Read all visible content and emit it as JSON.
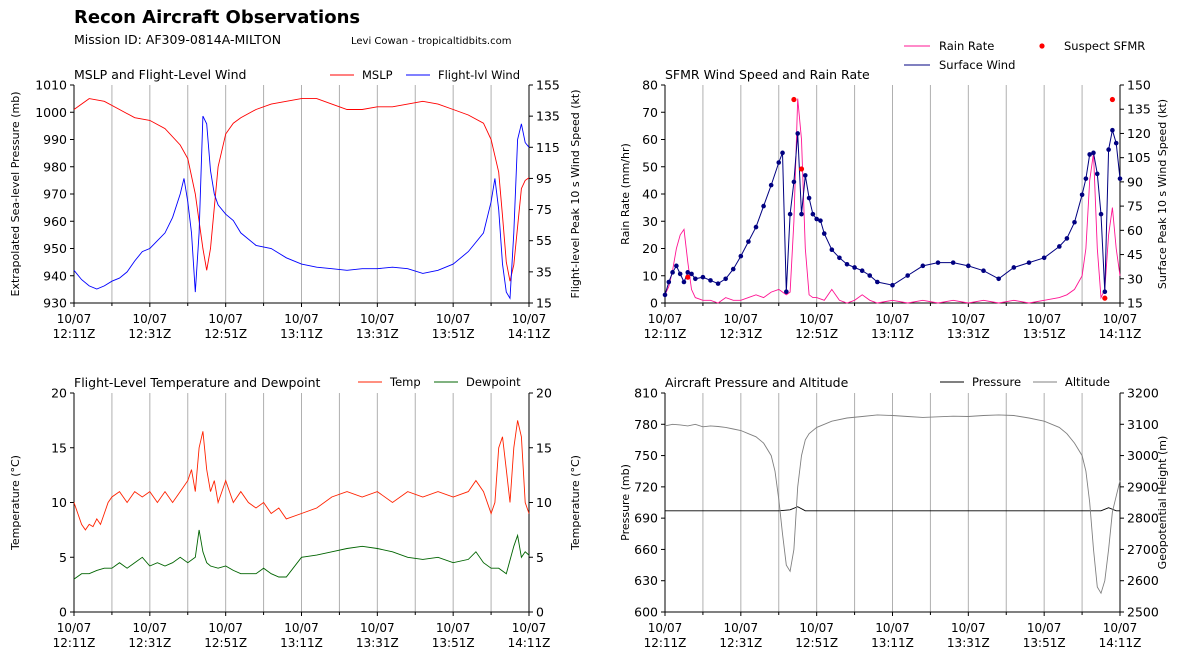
{
  "header": {
    "title": "Recon Aircraft Observations",
    "mission": "Mission ID: AF309-0814A-MILTON",
    "credit": "Levi Cowan - tropicaltidbits.com"
  },
  "time_ticks": [
    {
      "date": "10/07",
      "time": "12:11Z"
    },
    {
      "date": "10/07",
      "time": "12:31Z"
    },
    {
      "date": "10/07",
      "time": "12:51Z"
    },
    {
      "date": "10/07",
      "time": "13:11Z"
    },
    {
      "date": "10/07",
      "time": "13:31Z"
    },
    {
      "date": "10/07",
      "time": "13:51Z"
    },
    {
      "date": "10/07",
      "time": "14:11Z"
    }
  ],
  "chart_data": [
    {
      "type": "line",
      "title": "MSLP and Flight-Level Wind",
      "x_range": [
        "12:11Z",
        "14:11Z"
      ],
      "ylabel_left": "Extrapolated Sea-level Pressure (mb)",
      "ylabel_right": "Flight-level Peak 10 s Wind Speed (kt)",
      "ylim_left": [
        930,
        1010
      ],
      "ylim_right": [
        15,
        155
      ],
      "yticks_left": [
        930,
        940,
        950,
        960,
        970,
        980,
        990,
        1000,
        1010
      ],
      "yticks_right": [
        15,
        35,
        55,
        75,
        95,
        115,
        135,
        155
      ],
      "legend": "top-right",
      "series": [
        {
          "name": "MSLP",
          "color": "#ff0000",
          "axis": "left",
          "x": [
            0,
            4,
            8,
            12,
            16,
            20,
            24,
            28,
            30,
            32,
            33,
            34,
            35,
            36,
            37,
            38,
            40,
            42,
            44,
            48,
            52,
            56,
            60,
            64,
            68,
            72,
            76,
            80,
            84,
            88,
            92,
            96,
            100,
            104,
            108,
            110,
            112,
            113,
            114,
            115,
            116,
            117,
            118,
            119,
            120
          ],
          "y": [
            1001,
            1005,
            1004,
            1001,
            998,
            997,
            994,
            988,
            983,
            970,
            960,
            950,
            942,
            950,
            965,
            980,
            992,
            996,
            998,
            1001,
            1003,
            1004,
            1005,
            1005,
            1003,
            1001,
            1001,
            1002,
            1002,
            1003,
            1004,
            1003,
            1001,
            999,
            996,
            990,
            978,
            962,
            945,
            938,
            944,
            958,
            972,
            975,
            976
          ]
        },
        {
          "name": "Flight-lvl Wind",
          "color": "#0000ff",
          "axis": "right",
          "x": [
            0,
            2,
            4,
            6,
            8,
            10,
            12,
            14,
            16,
            18,
            20,
            22,
            24,
            26,
            28,
            29,
            30,
            31,
            32,
            33,
            34,
            35,
            36,
            37,
            38,
            40,
            42,
            44,
            48,
            52,
            56,
            60,
            64,
            68,
            72,
            76,
            80,
            84,
            88,
            92,
            96,
            100,
            104,
            108,
            110,
            111,
            112,
            113,
            114,
            115,
            116,
            117,
            118,
            119,
            120
          ],
          "y": [
            36,
            30,
            26,
            24,
            26,
            29,
            31,
            35,
            42,
            48,
            50,
            55,
            60,
            70,
            85,
            95,
            80,
            60,
            22,
            60,
            135,
            130,
            100,
            85,
            78,
            72,
            68,
            60,
            52,
            50,
            44,
            40,
            38,
            37,
            36,
            37,
            37,
            38,
            37,
            34,
            36,
            40,
            48,
            60,
            80,
            95,
            75,
            40,
            22,
            18,
            60,
            120,
            130,
            118,
            115
          ]
        }
      ]
    },
    {
      "type": "line",
      "title": "SFMR Wind Speed and Rain Rate",
      "x_range": [
        "12:11Z",
        "14:11Z"
      ],
      "ylabel_left": "Rain Rate (mm/hr)",
      "ylabel_right": "Surface Peak 10 s Wind Speed (kt)",
      "ylim_left": [
        0,
        80
      ],
      "ylim_right": [
        15,
        150
      ],
      "yticks_left": [
        0,
        10,
        20,
        30,
        40,
        50,
        60,
        70,
        80
      ],
      "yticks_right": [
        15,
        30,
        45,
        60,
        75,
        90,
        105,
        120,
        135,
        150
      ],
      "legend": "top-right",
      "series": [
        {
          "name": "Rain Rate",
          "color": "#ff1493",
          "axis": "left",
          "x": [
            0,
            1,
            2,
            3,
            4,
            5,
            6,
            7,
            8,
            10,
            12,
            14,
            16,
            18,
            20,
            22,
            24,
            26,
            28,
            30,
            32,
            33,
            34,
            35,
            36,
            37,
            38,
            39,
            40,
            42,
            44,
            46,
            48,
            50,
            52,
            54,
            56,
            60,
            64,
            68,
            72,
            76,
            80,
            84,
            88,
            92,
            96,
            100,
            104,
            106,
            108,
            110,
            111,
            112,
            113,
            114,
            115,
            116,
            117,
            118,
            119,
            120
          ],
          "y": [
            3,
            6,
            12,
            20,
            25,
            27,
            15,
            5,
            2,
            1,
            1,
            0,
            2,
            1,
            1,
            2,
            3,
            2,
            4,
            5,
            3,
            4,
            30,
            75,
            60,
            20,
            3,
            2,
            2,
            1,
            5,
            1,
            0,
            1,
            3,
            1,
            0,
            1,
            0,
            1,
            0,
            1,
            0,
            1,
            0,
            1,
            0,
            1,
            2,
            3,
            5,
            10,
            20,
            45,
            55,
            20,
            2,
            5,
            25,
            35,
            20,
            10
          ]
        },
        {
          "name": "Surface Wind",
          "color": "#000080",
          "axis": "right",
          "markers": true,
          "x": [
            0,
            1,
            2,
            3,
            4,
            5,
            6,
            7,
            8,
            10,
            12,
            14,
            16,
            18,
            20,
            22,
            24,
            26,
            28,
            30,
            31,
            32,
            33,
            34,
            35,
            36,
            37,
            38,
            39,
            40,
            41,
            42,
            44,
            46,
            48,
            50,
            52,
            54,
            56,
            60,
            64,
            68,
            72,
            76,
            80,
            84,
            88,
            92,
            96,
            100,
            104,
            106,
            108,
            110,
            111,
            112,
            113,
            114,
            115,
            116,
            117,
            118,
            119,
            120
          ],
          "y": [
            20,
            28,
            34,
            38,
            33,
            28,
            34,
            33,
            30,
            31,
            29,
            27,
            30,
            36,
            44,
            53,
            62,
            75,
            88,
            102,
            108,
            22,
            70,
            90,
            120,
            70,
            94,
            80,
            70,
            67,
            66,
            58,
            48,
            43,
            39,
            37,
            35,
            32,
            28,
            26,
            32,
            38,
            40,
            40,
            38,
            35,
            30,
            37,
            40,
            43,
            50,
            55,
            65,
            82,
            92,
            107,
            108,
            95,
            70,
            22,
            110,
            122,
            114,
            92
          ]
        },
        {
          "name": "Suspect SFMR",
          "color": "#ff0000",
          "axis": "right",
          "type": "scatter",
          "x": [
            6,
            34,
            36,
            116,
            118
          ],
          "y": [
            31,
            141,
            98,
            18,
            141
          ]
        }
      ]
    },
    {
      "type": "line",
      "title": "Flight-Level Temperature and Dewpoint",
      "x_range": [
        "12:11Z",
        "14:11Z"
      ],
      "ylabel_left": "Temperature (°C)",
      "ylabel_right": "Temperature (°C)",
      "ylim": [
        0,
        20
      ],
      "yticks": [
        0,
        5,
        10,
        15,
        20
      ],
      "legend": "top-right",
      "series": [
        {
          "name": "Temp",
          "color": "#ff2200",
          "x": [
            0,
            1,
            2,
            3,
            4,
            5,
            6,
            7,
            8,
            9,
            10,
            12,
            14,
            16,
            18,
            20,
            22,
            24,
            26,
            28,
            30,
            31,
            32,
            33,
            34,
            35,
            36,
            37,
            38,
            39,
            40,
            42,
            44,
            46,
            48,
            50,
            52,
            54,
            56,
            60,
            64,
            68,
            72,
            76,
            80,
            84,
            88,
            92,
            96,
            100,
            104,
            106,
            108,
            110,
            111,
            112,
            113,
            114,
            115,
            116,
            117,
            118,
            119,
            120
          ],
          "y": [
            10,
            9,
            8,
            7.5,
            8,
            7.8,
            8.5,
            8,
            9,
            10,
            10.5,
            11,
            10,
            11,
            10.5,
            11,
            10,
            11,
            10,
            11,
            12,
            13,
            11,
            15,
            16.5,
            13,
            11,
            12,
            10,
            11,
            12,
            10,
            11,
            10,
            9.5,
            10,
            9,
            9.5,
            8.5,
            9,
            9.5,
            10.5,
            11,
            10.5,
            11,
            10,
            11,
            10.5,
            11,
            10.5,
            11,
            12,
            11,
            9,
            10,
            15,
            16,
            13,
            10,
            15,
            17.5,
            16,
            10,
            9
          ]
        },
        {
          "name": "Dewpoint",
          "color": "#006400",
          "x": [
            0,
            2,
            4,
            6,
            8,
            10,
            12,
            14,
            16,
            18,
            20,
            22,
            24,
            26,
            28,
            30,
            32,
            33,
            34,
            35,
            36,
            38,
            40,
            42,
            44,
            46,
            48,
            50,
            52,
            54,
            56,
            60,
            64,
            68,
            72,
            76,
            80,
            84,
            88,
            92,
            96,
            100,
            104,
            106,
            108,
            110,
            112,
            114,
            116,
            117,
            118,
            119,
            120
          ],
          "y": [
            3,
            3.5,
            3.5,
            3.8,
            4,
            4,
            4.5,
            4,
            4.5,
            5,
            4.2,
            4.5,
            4.2,
            4.5,
            5,
            4.5,
            5,
            7.5,
            5.5,
            4.5,
            4.2,
            4,
            4.2,
            3.8,
            3.5,
            3.5,
            3.5,
            4,
            3.5,
            3.2,
            3.2,
            5,
            5.2,
            5.5,
            5.8,
            6,
            5.8,
            5.5,
            5,
            4.8,
            5,
            4.5,
            4.8,
            5.5,
            4.5,
            4,
            4,
            3.5,
            6,
            7,
            5,
            5.5,
            5.2
          ]
        }
      ]
    },
    {
      "type": "line",
      "title": "Aircraft Pressure and Altitude",
      "x_range": [
        "12:11Z",
        "14:11Z"
      ],
      "ylabel_left": "Pressure (mb)",
      "ylabel_right": "Geopotential Height (m)",
      "ylim_left": [
        600,
        810
      ],
      "ylim_right": [
        2500,
        3200
      ],
      "yticks_left": [
        600,
        630,
        660,
        690,
        720,
        750,
        780,
        810
      ],
      "yticks_right": [
        2500,
        2600,
        2700,
        2800,
        2900,
        3000,
        3100,
        3200
      ],
      "legend": "top-right",
      "series": [
        {
          "name": "Pressure",
          "color": "#000000",
          "axis": "left",
          "x": [
            0,
            10,
            20,
            30,
            33,
            35,
            37,
            40,
            50,
            60,
            70,
            80,
            90,
            100,
            110,
            115,
            117,
            119,
            120
          ],
          "y": [
            697,
            697,
            697,
            697,
            698,
            701,
            697,
            697,
            697,
            697,
            697,
            697,
            697,
            697,
            697,
            697,
            700,
            697,
            697
          ]
        },
        {
          "name": "Altitude",
          "color": "#808080",
          "axis": "right",
          "x": [
            0,
            2,
            4,
            6,
            8,
            10,
            12,
            14,
            16,
            18,
            20,
            22,
            24,
            26,
            28,
            29,
            30,
            31,
            32,
            33,
            34,
            35,
            36,
            37,
            38,
            40,
            42,
            44,
            48,
            52,
            56,
            60,
            64,
            68,
            72,
            76,
            80,
            84,
            88,
            92,
            96,
            100,
            104,
            106,
            108,
            110,
            111,
            112,
            113,
            114,
            115,
            116,
            117,
            118,
            119,
            120
          ],
          "y": [
            3095,
            3100,
            3098,
            3095,
            3100,
            3092,
            3095,
            3093,
            3090,
            3085,
            3080,
            3070,
            3060,
            3040,
            3000,
            2950,
            2860,
            2750,
            2650,
            2630,
            2700,
            2900,
            3000,
            3050,
            3070,
            3090,
            3100,
            3110,
            3120,
            3125,
            3130,
            3128,
            3125,
            3122,
            3124,
            3126,
            3125,
            3128,
            3130,
            3128,
            3120,
            3110,
            3090,
            3070,
            3040,
            3000,
            2950,
            2850,
            2700,
            2580,
            2560,
            2600,
            2700,
            2820,
            2870,
            2920
          ]
        }
      ]
    }
  ]
}
